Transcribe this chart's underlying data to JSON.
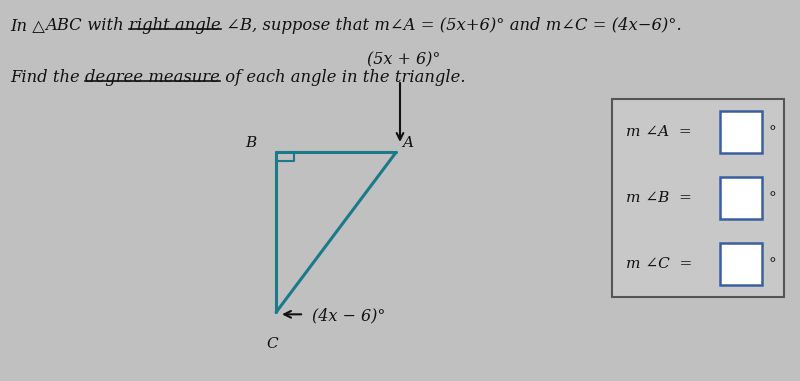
{
  "bg_color": "#c0c0c0",
  "triangle_color": "#1a7a8a",
  "text_color": "#111111",
  "vertex_B": [
    0.345,
    0.6
  ],
  "vertex_A": [
    0.495,
    0.6
  ],
  "vertex_C": [
    0.345,
    0.18
  ],
  "label_B": "B",
  "label_A": "A",
  "label_C": "C",
  "angle_A_label": "(5x + 6)°",
  "angle_C_label": "(4x − 6)°",
  "box_labels": [
    "m ∠A  =",
    "m ∠B  =",
    "m ∠C  ="
  ],
  "line1_parts": [
    [
      "In △",
      false
    ],
    [
      "ABC",
      false
    ],
    [
      " with ",
      false
    ],
    [
      "right angle",
      true
    ],
    [
      " ∠",
      false
    ],
    [
      "B",
      false
    ],
    [
      ", suppose that m∠A = (5x+6)° and m∠C = (4x−6)°.",
      false
    ]
  ],
  "line2_parts": [
    [
      "Find the ",
      false
    ],
    [
      "degree measure",
      true
    ],
    [
      " of each angle in the triangle.",
      false
    ]
  ]
}
